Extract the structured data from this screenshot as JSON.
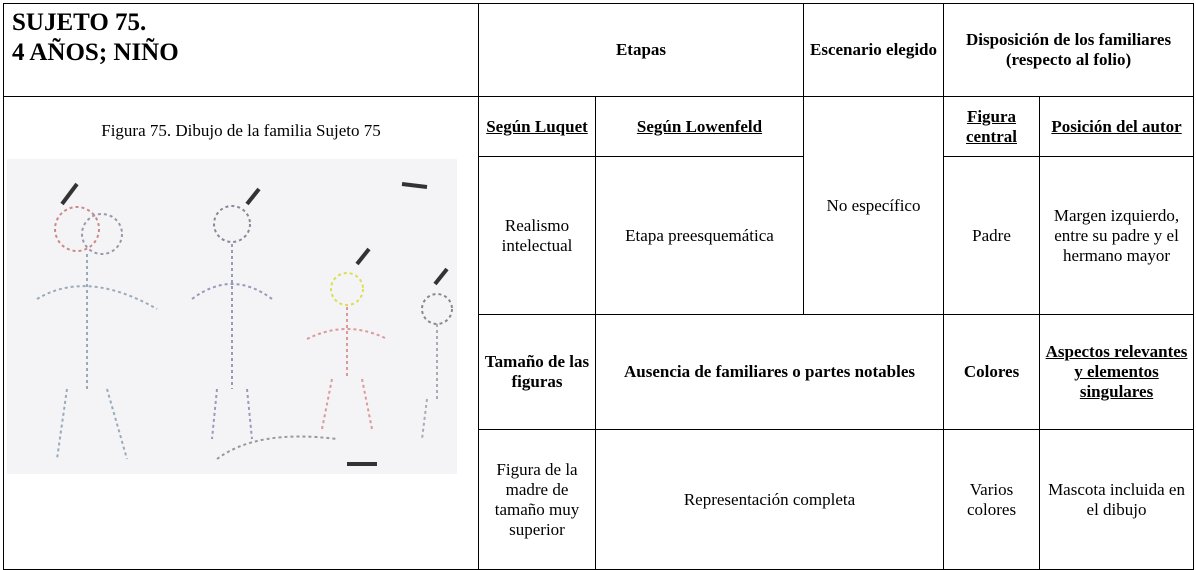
{
  "header": {
    "title_lines": [
      "SUJETO 75.",
      "4 AÑOS; NIÑO"
    ],
    "etapas": "Etapas",
    "escenario": "Escenario elegido",
    "disposicion": "Disposición de los familiares (respecto al folio)"
  },
  "figure": {
    "caption": "Figura 75. Dibujo de la familia Sujeto 75"
  },
  "table": {
    "subheaders": [
      "Según Luquet",
      "Según Lowenfeld",
      "Figura central",
      "Posición del autor"
    ],
    "row1": [
      "Realismo intelectual",
      "Etapa preesquemática",
      "No específico",
      "Padre",
      "Margen izquierdo, entre su padre y el hermano mayor"
    ],
    "subheaders2": [
      "Tamaño de las figuras",
      "Ausencia de familiares o partes notables",
      "Colores",
      "Aspectos relevantes y elementos singulares"
    ],
    "row2": [
      "Figura de la madre de tamaño muy superior",
      "Representación completa",
      "Varios colores",
      "Mascota incluida en el dibujo"
    ]
  }
}
